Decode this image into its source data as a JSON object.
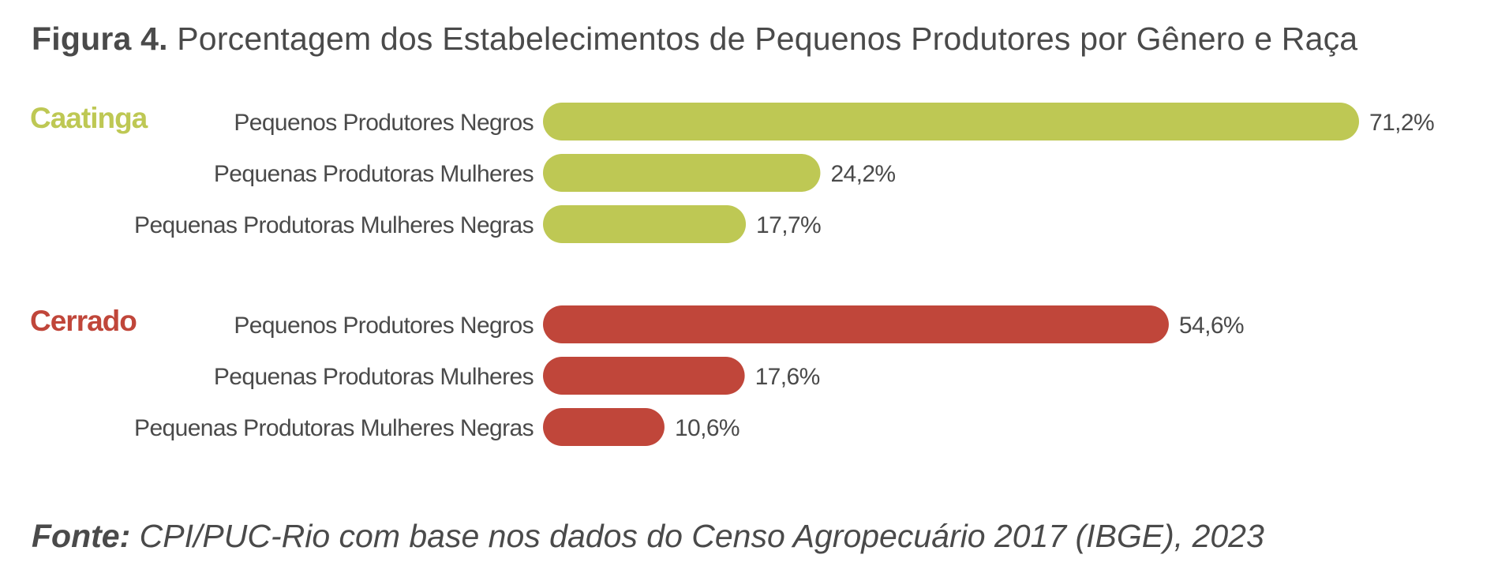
{
  "title": {
    "figure": "Figura 4.",
    "text": "Porcentagem dos Estabelecimentos de Pequenos Produtores por Gênero e Raça"
  },
  "source": {
    "label": "Fonte:",
    "text": "CPI/PUC-Rio com base nos dados do Censo Agropecuário 2017 (IBGE), 2023"
  },
  "colors": {
    "caatinga": "#bec854",
    "cerrado": "#c0463a",
    "text": "#4a4a4a"
  },
  "chart_data": {
    "type": "bar",
    "orientation": "horizontal",
    "xlim": [
      0,
      71.2
    ],
    "grid": false,
    "groups": [
      {
        "name": "Caatinga",
        "color": "#bec854",
        "categories": [
          "Pequenos Produtores Negros",
          "Pequenas Produtoras Mulheres",
          "Pequenas Produtoras Mulheres Negras"
        ],
        "values": [
          71.2,
          24.2,
          17.7
        ],
        "labels": [
          "71,2%",
          "24,2%",
          "17,7%"
        ]
      },
      {
        "name": "Cerrado",
        "color": "#c0463a",
        "categories": [
          "Pequenos Produtores Negros",
          "Pequenas Produtoras Mulheres",
          "Pequenas Produtoras Mulheres Negras"
        ],
        "values": [
          54.6,
          17.6,
          10.6
        ],
        "labels": [
          "54,6%",
          "17,6%",
          "10,6%"
        ]
      }
    ]
  }
}
